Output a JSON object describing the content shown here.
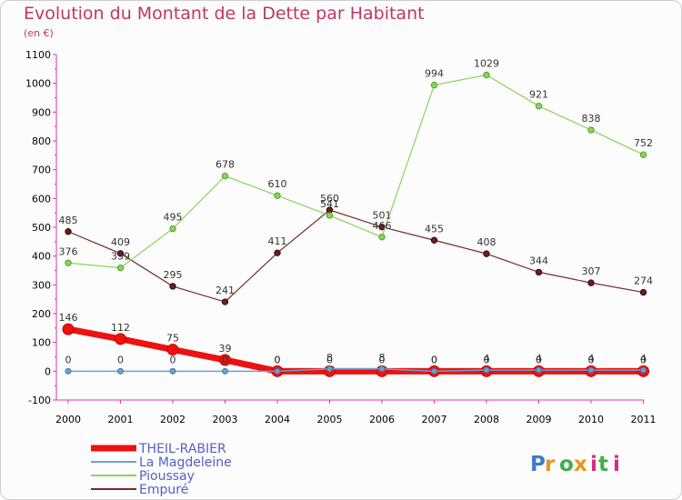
{
  "title": "Evolution du Montant de la Dette par Habitant",
  "subtitle": "(en €)",
  "logo": "Proxiti",
  "chart_data": {
    "type": "line",
    "title": "Evolution du Montant de la Dette par Habitant",
    "subtitle": "(en €)",
    "xlabel": "",
    "ylabel": "",
    "ylim": [
      -100,
      1100
    ],
    "yticks": [
      "-100",
      "0",
      "100",
      "200",
      "300",
      "400",
      "500",
      "600",
      "700",
      "800",
      "900",
      "1000",
      "1100"
    ],
    "categories": [
      "2000",
      "2001",
      "2002",
      "2003",
      "2004",
      "2005",
      "2006",
      "2007",
      "2008",
      "2009",
      "2010",
      "2011"
    ],
    "grid": false,
    "legend_position": "bottom-left",
    "series": [
      {
        "name": "THEIL-RABIER",
        "color": "#ee1111",
        "values": [
          146,
          112,
          75,
          39,
          0,
          0,
          0,
          0,
          0,
          0,
          0,
          0
        ],
        "labels": [
          "146",
          "112",
          "75",
          "39",
          "0",
          "0",
          "0",
          "0",
          "0",
          "0",
          "0",
          "0"
        ]
      },
      {
        "name": "La Magdeleine",
        "color": "#6aa2d0",
        "values": [
          0,
          0,
          0,
          0,
          0,
          8,
          8,
          0,
          4,
          4,
          4,
          4
        ],
        "labels": [
          "0",
          "0",
          "0",
          "0",
          "0",
          "8",
          "8",
          "0",
          "4",
          "4",
          "4",
          "4"
        ]
      },
      {
        "name": "Pioussay",
        "color": "#88d45c",
        "values": [
          376,
          359,
          495,
          678,
          610,
          541,
          466,
          994,
          1029,
          921,
          838,
          752
        ],
        "labels": [
          "376",
          "359",
          "495",
          "678",
          "610",
          "541",
          "466",
          "994",
          "1029",
          "921",
          "838",
          "752"
        ]
      },
      {
        "name": "Empuré",
        "color": "#7a2a2a",
        "values": [
          485,
          409,
          295,
          241,
          411,
          560,
          501,
          455,
          408,
          344,
          307,
          274
        ],
        "labels": [
          "485",
          "409",
          "295",
          "241",
          "411",
          "560",
          "501",
          "455",
          "408",
          "344",
          "307",
          "274"
        ]
      }
    ]
  }
}
